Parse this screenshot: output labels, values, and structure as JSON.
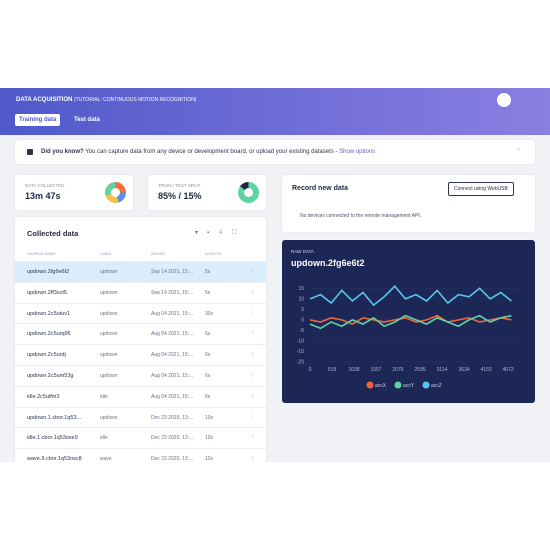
{
  "header": {
    "title": "DATA ACQUISITION",
    "subtitle": "(TUTORIAL: CONTINUOUS MOTION RECOGNITION)",
    "tabs": [
      "Training data",
      "Test data"
    ]
  },
  "banner": {
    "title": "Did you know?",
    "text": "You can capture data from any device or development board, or upload your existing datasets -",
    "link": "Show options"
  },
  "stats": [
    {
      "label": "DATA COLLECTED",
      "value": "13m 47s"
    },
    {
      "label": "TRAIN / TEST SPLIT",
      "value": "85% / 15%"
    }
  ],
  "table": {
    "title": "Collected data",
    "columns": [
      "SAMPLE NAME",
      "LABEL",
      "ADDED",
      "LENGTH"
    ],
    "rows": [
      [
        "updown.2fg6e6t2",
        "updown",
        "Sep 14 2021, 15:...",
        "5s"
      ],
      [
        "updown.2ff3sct5",
        "updown",
        "Sep 14 2021, 15:...",
        "5s"
      ],
      [
        "updown.2c5utuv1",
        "updown",
        "Aug 04 2021, 15:...",
        "30s"
      ],
      [
        "updown.2c5urq95",
        "updown",
        "Aug 04 2021, 15:...",
        "6s"
      ],
      [
        "updown.2c5urdj",
        "updown",
        "Aug 04 2021, 15:...",
        "6s"
      ],
      [
        "updown.2c5um53g",
        "updown",
        "Aug 04 2021, 15:...",
        "6s"
      ],
      [
        "idle.2c5ulfm3",
        "idle",
        "Aug 04 2021, 15:...",
        "6s"
      ],
      [
        "updown.1.cbor.1q53...",
        "updown",
        "Dec 23 2020, 13:...",
        "10s"
      ],
      [
        "idle.1.cbor.1q53ose9",
        "idle",
        "Dec 23 2020, 13:...",
        "10s"
      ],
      [
        "wave.9.cbor.1q53osc8",
        "wave",
        "Dec 23 2020, 13:...",
        "10s"
      ]
    ]
  },
  "record": {
    "title": "Record new data",
    "button": "Connect using WebUSB",
    "message": "No devices connected to the remote management API."
  },
  "chart_data": {
    "type": "line",
    "subtitle": "RAW DATA",
    "title": "updown.2fg6e6t2",
    "x": [
      0,
      250,
      500,
      750,
      1000,
      1250,
      1500,
      1750,
      2000,
      2250,
      2500,
      2750,
      3000,
      3250,
      3500,
      3750,
      4000,
      4250,
      4500,
      4750
    ],
    "xlim": [
      0,
      5000
    ],
    "xticks": [
      0,
      519,
      1038,
      1557,
      2076,
      2595,
      3114,
      3634,
      4153,
      4672
    ],
    "ylim": [
      -20,
      18
    ],
    "yticks": [
      15,
      10,
      5,
      0,
      -5,
      -10,
      -15,
      -20
    ],
    "series": [
      {
        "name": "accX",
        "color": "#f0643c",
        "values": [
          0,
          -1,
          1,
          0,
          -2,
          1,
          0,
          -1,
          0,
          1,
          -1,
          0,
          2,
          -1,
          0,
          1,
          -1,
          0,
          1,
          0
        ]
      },
      {
        "name": "accY",
        "color": "#5fd3a2",
        "values": [
          -2,
          -4,
          -1,
          -3,
          0,
          -2,
          1,
          -3,
          -1,
          2,
          0,
          -2,
          1,
          -1,
          -3,
          0,
          2,
          -1,
          1,
          2
        ]
      },
      {
        "name": "accZ",
        "color": "#58c6f2",
        "values": [
          10,
          12,
          8,
          14,
          9,
          13,
          7,
          11,
          16,
          10,
          12,
          9,
          14,
          8,
          12,
          11,
          15,
          10,
          13,
          9
        ]
      }
    ]
  }
}
